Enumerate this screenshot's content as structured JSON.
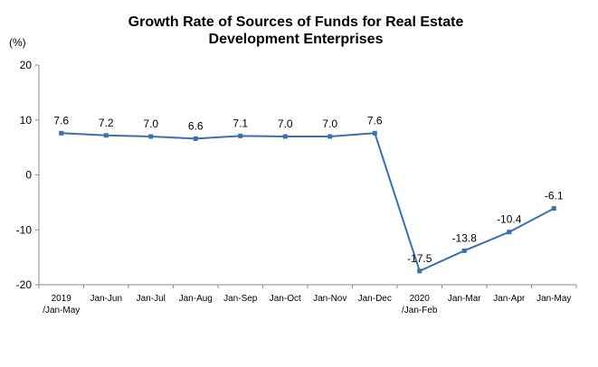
{
  "chart_data": {
    "type": "line",
    "title_line1": "Growth Rate of Sources of Funds for Real Estate",
    "title_line2": "Development Enterprises",
    "unit": "(%)",
    "ylim": [
      -20,
      20
    ],
    "yticks": [
      "20",
      "10",
      "0",
      "-10",
      "-20"
    ],
    "categories": [
      [
        "2019",
        "/Jan-May"
      ],
      [
        "Jan-Jun"
      ],
      [
        "Jan-Jul"
      ],
      [
        "Jan-Aug"
      ],
      [
        "Jan-Sep"
      ],
      [
        "Jan-Oct"
      ],
      [
        "Jan-Nov"
      ],
      [
        "Jan-Dec"
      ],
      [
        "2020",
        "/Jan-Feb"
      ],
      [
        "Jan-Mar"
      ],
      [
        "Jan-Apr"
      ],
      [
        "Jan-May"
      ]
    ],
    "values": [
      7.6,
      7.2,
      7.0,
      6.6,
      7.1,
      7.0,
      7.0,
      7.6,
      -17.5,
      -13.8,
      -10.4,
      -6.1
    ],
    "labels": [
      "7.6",
      "7.2",
      "7.0",
      "6.6",
      "7.1",
      "7.0",
      "7.0",
      "7.6",
      "-17.5",
      "-13.8",
      "-10.4",
      "-6.1"
    ],
    "line_color": "#3a6fb0",
    "legend": "none",
    "grid": false
  }
}
